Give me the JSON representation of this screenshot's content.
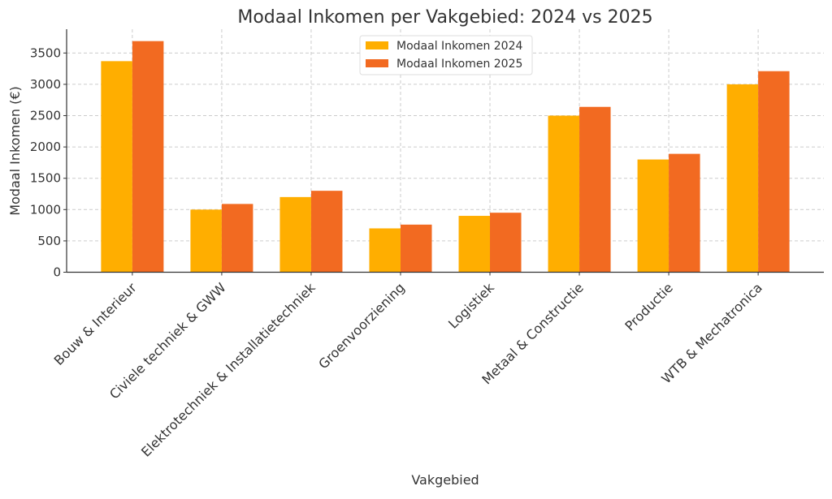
{
  "chart_data": {
    "type": "bar",
    "title": "Modaal Inkomen per Vakgebied: 2024 vs 2025",
    "xlabel": "Vakgebied",
    "ylabel": "Modaal Inkomen (€)",
    "categories": [
      "Bouw & Interieur",
      "Civiele techniek & GWW",
      "Elektrotechniek & Installatietechniek",
      "Groenvoorziening",
      "Logistiek",
      "Metaal & Constructie",
      "Productie",
      "WTB & Mechatronica"
    ],
    "series": [
      {
        "name": "Modaal Inkomen 2024",
        "color": "#FFAE00",
        "values": [
          3370,
          1000,
          1200,
          700,
          900,
          2500,
          1800,
          3000
        ]
      },
      {
        "name": "Modaal Inkomen 2025",
        "color": "#F26A21",
        "values": [
          3690,
          1090,
          1300,
          760,
          950,
          2640,
          1890,
          3210
        ]
      }
    ],
    "ylim": [
      0,
      3880
    ],
    "yticks": [
      0,
      500,
      1000,
      1500,
      2000,
      2500,
      3000,
      3500
    ],
    "grid": true,
    "legend": "top-center"
  }
}
